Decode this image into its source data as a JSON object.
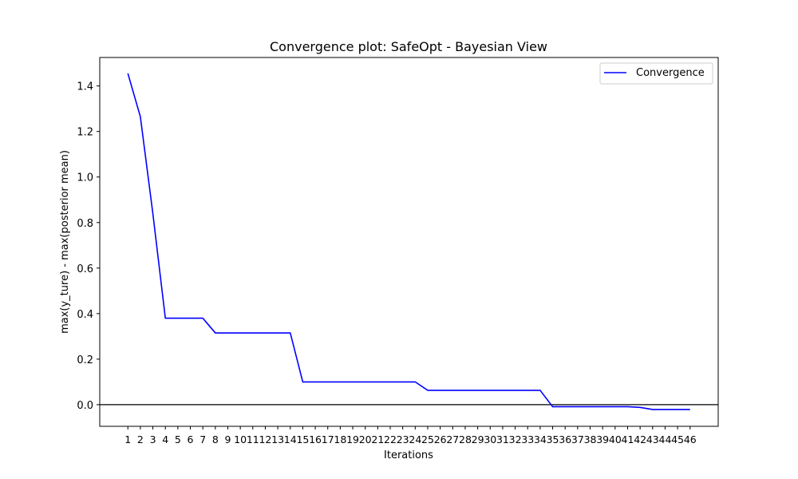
{
  "chart_data": {
    "type": "line",
    "title": "Convergence plot: SafeOpt - Bayesian View",
    "xlabel": "Iterations",
    "ylabel": "max(y_ture) - max(posterior mean)",
    "x": [
      1,
      2,
      3,
      4,
      5,
      6,
      7,
      8,
      9,
      10,
      11,
      12,
      13,
      14,
      15,
      16,
      17,
      18,
      19,
      20,
      21,
      22,
      23,
      24,
      25,
      26,
      27,
      28,
      29,
      30,
      31,
      32,
      33,
      34,
      35,
      36,
      37,
      38,
      39,
      40,
      41,
      42,
      43,
      44,
      45,
      46
    ],
    "series": [
      {
        "name": "Convergence",
        "color": "#0000ff",
        "values": [
          1.455,
          1.265,
          0.84,
          0.38,
          0.38,
          0.38,
          0.38,
          0.315,
          0.315,
          0.315,
          0.315,
          0.315,
          0.315,
          0.315,
          0.1,
          0.1,
          0.1,
          0.1,
          0.1,
          0.1,
          0.1,
          0.1,
          0.1,
          0.1,
          0.063,
          0.063,
          0.063,
          0.063,
          0.063,
          0.063,
          0.063,
          0.063,
          0.063,
          0.063,
          -0.009,
          -0.009,
          -0.009,
          -0.009,
          -0.009,
          -0.009,
          -0.009,
          -0.012,
          -0.021,
          -0.021,
          -0.021,
          -0.021
        ]
      }
    ],
    "xlim": [
      -1.25,
      48.25
    ],
    "ylim": [
      -0.095,
      1.525
    ],
    "yticks": [
      0.0,
      0.2,
      0.4,
      0.6,
      0.8,
      1.0,
      1.2,
      1.4
    ],
    "ytick_labels": [
      "0.0",
      "0.2",
      "0.4",
      "0.6",
      "0.8",
      "1.0",
      "1.2",
      "1.4"
    ],
    "xtick_labels": [
      "1",
      "2",
      "3",
      "4",
      "5",
      "6",
      "7",
      "8",
      "9",
      "10",
      "11",
      "12",
      "13",
      "14",
      "15",
      "16",
      "17",
      "18",
      "19",
      "20",
      "21",
      "22",
      "23",
      "24",
      "25",
      "26",
      "27",
      "28",
      "29",
      "30",
      "31",
      "32",
      "33",
      "34",
      "35",
      "36",
      "37",
      "38",
      "39",
      "40",
      "41",
      "42",
      "43",
      "44",
      "45",
      "46"
    ],
    "hline": 0,
    "hline_color": "#000000",
    "grid": false,
    "legend": "top-right"
  }
}
